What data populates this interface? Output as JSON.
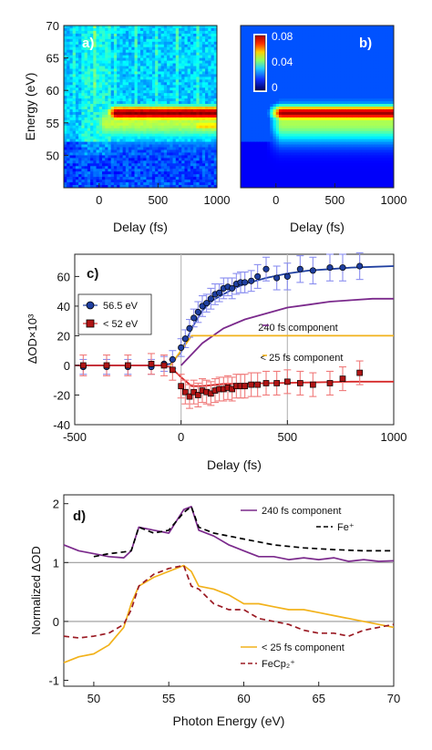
{
  "chart_data": [
    {
      "panel": "a)",
      "type": "heatmap",
      "ylabel": "Energy (eV)",
      "xlabel": "Delay (fs)",
      "xlim": [
        -300,
        1000
      ],
      "ylim": [
        45,
        70
      ],
      "xticks": [
        "0",
        "500",
        "1000"
      ],
      "yticks": [
        "50",
        "55",
        "60",
        "65",
        "70"
      ],
      "bands": [
        {
          "center_eV": 56.5,
          "width_eV": 1.2,
          "peak": 0.08,
          "onset_fs": 100
        },
        {
          "center_eV": 55.0,
          "width_eV": 2.8,
          "peak": 0.04,
          "onset_fs": 0
        },
        {
          "center_eV": 54.5,
          "width_eV": 1.0,
          "peak": 0.05,
          "onset_fs": 800
        }
      ]
    },
    {
      "panel": "b)",
      "type": "heatmap",
      "xlabel": "Delay (fs)",
      "xlim": [
        -300,
        1000
      ],
      "ylim": [
        45,
        70
      ],
      "xticks": [
        "0",
        "500",
        "1000"
      ],
      "colorbar": {
        "ticks": [
          "0.08",
          "0.04",
          "0"
        ],
        "range": [
          0,
          0.08
        ]
      },
      "bands": [
        {
          "center_eV": 56.5,
          "width_eV": 1.2,
          "peak": 0.08,
          "onset_fs": 0
        },
        {
          "center_eV": 55.0,
          "width_eV": 3.0,
          "peak": 0.04,
          "onset_fs": 0
        }
      ]
    },
    {
      "panel": "c)",
      "type": "scatter",
      "xlabel": "Delay (fs)",
      "ylabel": "ΔOD×10³",
      "xlim": [
        -500,
        1000
      ],
      "ylim": [
        -40,
        75
      ],
      "xticks": [
        "-500",
        "0",
        "500",
        "1000"
      ],
      "yticks": [
        "-40",
        "-20",
        "0",
        "20",
        "40",
        "60"
      ],
      "vlines": [
        0,
        500
      ],
      "legend": {
        "position": "left",
        "entries": [
          "56.5 eV",
          "< 52 eV"
        ]
      },
      "series": [
        {
          "name": "56.5 eV",
          "color": "#1f3fa0",
          "x": [
            -460,
            -350,
            -250,
            -140,
            -80,
            -40,
            0,
            20,
            40,
            60,
            80,
            100,
            120,
            140,
            160,
            180,
            200,
            220,
            240,
            260,
            280,
            300,
            330,
            360,
            400,
            450,
            500,
            560,
            620,
            700,
            760,
            840
          ],
          "y": [
            -1,
            -1,
            -1,
            -1,
            1,
            4,
            12,
            18,
            25,
            32,
            36,
            40,
            42,
            45,
            48,
            49,
            52,
            53,
            52,
            55,
            56,
            56,
            57,
            60,
            65,
            59,
            60,
            65,
            64,
            66,
            66,
            67
          ],
          "err": [
            5,
            5,
            5,
            5,
            5,
            6,
            6,
            6,
            6,
            6,
            7,
            7,
            6,
            7,
            7,
            6,
            7,
            6,
            7,
            7,
            7,
            7,
            7,
            8,
            8,
            8,
            9,
            9,
            9,
            9,
            9,
            9
          ]
        },
        {
          "name": "< 52 eV",
          "color": "#b01515",
          "x": [
            -460,
            -350,
            -250,
            -140,
            -80,
            -40,
            0,
            20,
            40,
            60,
            80,
            100,
            120,
            140,
            160,
            180,
            200,
            220,
            240,
            260,
            280,
            300,
            330,
            360,
            400,
            450,
            500,
            560,
            620,
            700,
            760,
            840
          ],
          "y": [
            0,
            0,
            0,
            1,
            0,
            -3,
            -14,
            -18,
            -21,
            -18,
            -20,
            -17,
            -18,
            -19,
            -17,
            -16,
            -16,
            -15,
            -16,
            -14,
            -14,
            -14,
            -13,
            -13,
            -12,
            -12,
            -11,
            -12,
            -13,
            -12,
            -9,
            -5
          ],
          "err": [
            7,
            7,
            7,
            7,
            7,
            7,
            8,
            8,
            8,
            8,
            8,
            8,
            8,
            8,
            8,
            8,
            8,
            8,
            8,
            8,
            8,
            8,
            8,
            8,
            8,
            8,
            8,
            8,
            8,
            8,
            8,
            8
          ]
        },
        {
          "name": "fit 56.5 eV",
          "color": "#1f3fa0",
          "type": "line",
          "x": [
            -500,
            -100,
            -50,
            0,
            50,
            100,
            150,
            200,
            250,
            300,
            400,
            500,
            600,
            700,
            800,
            900,
            1000
          ],
          "y": [
            0,
            0,
            1,
            9,
            25,
            37,
            44,
            48,
            52,
            55,
            59,
            62,
            64,
            65,
            66,
            66.5,
            67
          ]
        },
        {
          "name": "fit < 52 eV",
          "color": "#d62a2a",
          "type": "line",
          "x": [
            -500,
            -100,
            -50,
            0,
            50,
            100,
            200,
            400,
            600,
            800,
            1000
          ],
          "y": [
            0,
            0,
            -1,
            -8,
            -14,
            -14,
            -12.5,
            -12,
            -11.5,
            -11,
            -11
          ]
        },
        {
          "name": "240 fs component",
          "color": "#7b2a8c",
          "type": "line",
          "x": [
            0,
            100,
            200,
            300,
            400,
            500,
            600,
            700,
            800,
            900,
            1000
          ],
          "y": [
            0,
            15,
            25,
            31,
            35,
            39,
            41,
            43,
            44,
            45,
            45
          ]
        },
        {
          "name": "< 25 fs component",
          "color": "#f2b21b",
          "type": "line",
          "x": [
            -50,
            0,
            50,
            1000
          ],
          "y": [
            0,
            10,
            20,
            20
          ]
        }
      ],
      "annotations": [
        "240 fs component",
        "< 25 fs component"
      ]
    },
    {
      "panel": "d)",
      "type": "line",
      "xlabel": "Photon Energy (eV)",
      "ylabel": "Normalized ΔOD",
      "xlim": [
        48,
        70
      ],
      "ylim": [
        -1.1,
        2.15
      ],
      "xticks": [
        "50",
        "55",
        "60",
        "65",
        "70"
      ],
      "yticks": [
        "-1",
        "0",
        "1",
        "2"
      ],
      "hlines": [
        1,
        0
      ],
      "series": [
        {
          "name": "240 fs component",
          "color": "#7b2a8c",
          "x": [
            48,
            49,
            50,
            51,
            52,
            52.5,
            53,
            54,
            55,
            55.5,
            56,
            56.5,
            57,
            58,
            59,
            60,
            61,
            62,
            63,
            64,
            65,
            66,
            67,
            68,
            69,
            70
          ],
          "y": [
            1.3,
            1.2,
            1.15,
            1.1,
            1.08,
            1.2,
            1.6,
            1.55,
            1.5,
            1.7,
            1.9,
            1.95,
            1.55,
            1.45,
            1.3,
            1.2,
            1.1,
            1.1,
            1.05,
            1.08,
            1.05,
            1.08,
            1.02,
            1.05,
            1.02,
            1.03
          ]
        },
        {
          "name": "Fe⁺",
          "color": "#000000",
          "dash": true,
          "x": [
            50,
            51,
            52,
            52.5,
            53,
            54,
            55,
            56,
            56.5,
            57,
            58,
            59,
            60,
            62,
            64,
            66,
            68,
            70
          ],
          "y": [
            1.1,
            1.15,
            1.18,
            1.2,
            1.6,
            1.5,
            1.55,
            1.85,
            1.95,
            1.6,
            1.5,
            1.45,
            1.4,
            1.3,
            1.25,
            1.22,
            1.2,
            1.2
          ]
        },
        {
          "name": "< 25 fs component",
          "color": "#f2b21b",
          "x": [
            48,
            49,
            50,
            51,
            52,
            52.5,
            53,
            54,
            55,
            56,
            56.5,
            57,
            58,
            59,
            60,
            61,
            62,
            63,
            64,
            65,
            66,
            67,
            68,
            69,
            70
          ],
          "y": [
            -0.7,
            -0.6,
            -0.55,
            -0.4,
            -0.1,
            0.3,
            0.6,
            0.75,
            0.85,
            0.95,
            0.85,
            0.6,
            0.55,
            0.45,
            0.3,
            0.3,
            0.25,
            0.2,
            0.2,
            0.15,
            0.1,
            0.05,
            0.0,
            -0.05,
            -0.1
          ]
        },
        {
          "name": "FeCp₂⁺",
          "color": "#9b1b24",
          "dash": true,
          "x": [
            48,
            49,
            50,
            51,
            52,
            52.5,
            53,
            54,
            55,
            56,
            56.5,
            57,
            58,
            59,
            60,
            61,
            62,
            63,
            64,
            65,
            66,
            67,
            68,
            69,
            70
          ],
          "y": [
            -0.25,
            -0.28,
            -0.25,
            -0.2,
            -0.05,
            0.2,
            0.6,
            0.8,
            0.9,
            0.95,
            0.6,
            0.55,
            0.3,
            0.2,
            0.2,
            0.05,
            0.0,
            -0.05,
            -0.15,
            -0.2,
            -0.2,
            -0.25,
            -0.15,
            -0.1,
            -0.05
          ]
        }
      ],
      "legend_upper": [
        "240 fs component",
        "Fe⁺"
      ],
      "legend_lower": [
        "< 25 fs component",
        "FeCp₂⁺"
      ]
    }
  ]
}
